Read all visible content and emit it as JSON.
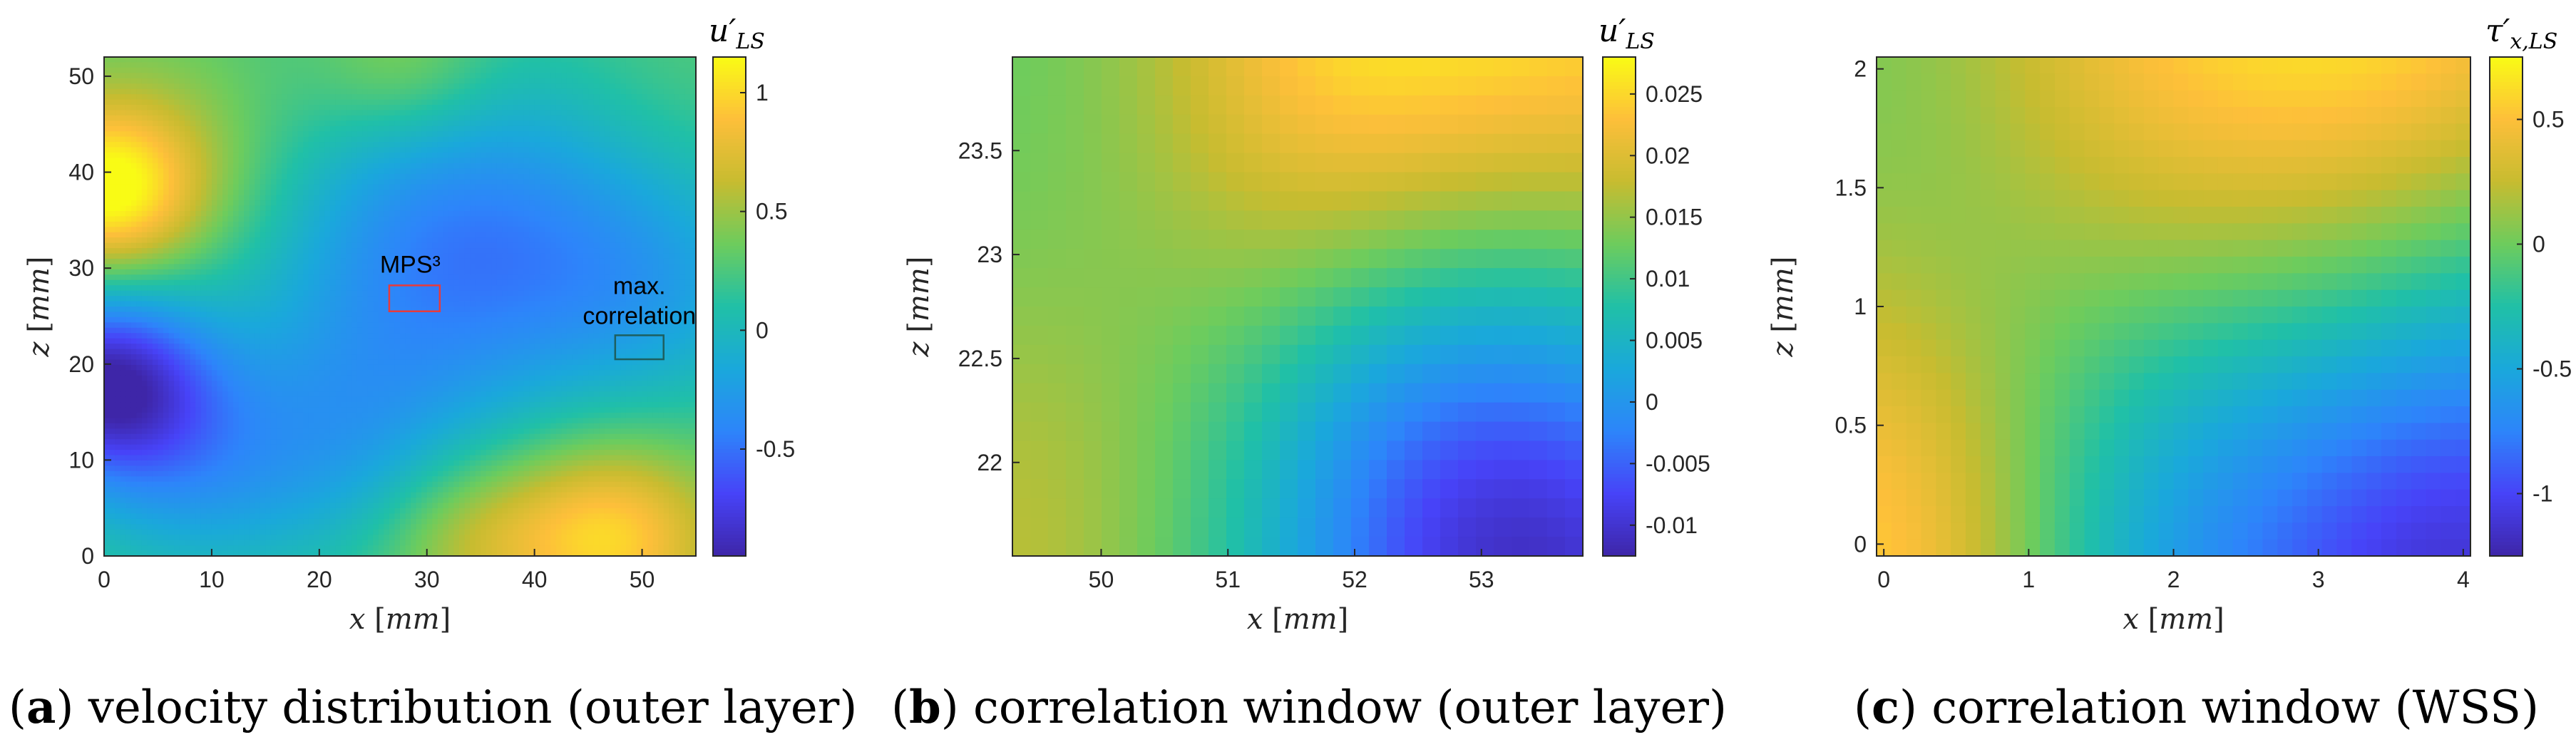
{
  "colormap": [
    "#3e26a8",
    "#4743f8",
    "#2d85fa",
    "#1aa8db",
    "#20c0a7",
    "#6dcc5d",
    "#c7bc30",
    "#fdbf3a",
    "#f9fb15"
  ],
  "chart_data": [
    {
      "type": "heatmap",
      "caption_letter": "a",
      "caption_text": " velocity distribution (outer layer)",
      "xlabel": "x",
      "xlabel_unit": "mm",
      "ylabel": "z",
      "ylabel_unit": "mm",
      "colorbar_label": "u′",
      "colorbar_sub": "LS",
      "xlim": [
        0,
        55
      ],
      "ylim": [
        0,
        52
      ],
      "xticks": [
        "0",
        "10",
        "20",
        "30",
        "40",
        "50"
      ],
      "yticks": [
        "0",
        "10",
        "20",
        "30",
        "40",
        "50"
      ],
      "clim": [
        -0.95,
        1.15
      ],
      "cticks": [
        "-0.5",
        "0",
        "0.5",
        "1"
      ],
      "annotations": [
        {
          "text": "MPS³",
          "box_x": [
            26.5,
            31.2
          ],
          "box_z": [
            25.5,
            28.2
          ],
          "color": "#e83b3b"
        },
        {
          "text": "max.",
          "text2": "correlation",
          "box_x": [
            47.5,
            52.0
          ],
          "box_z": [
            20.5,
            23.0
          ],
          "color": "#1d5f5f"
        }
      ],
      "field": [
        {
          "x": 0,
          "z": 38,
          "v": 1.1,
          "s": 6
        },
        {
          "x": 6,
          "z": 42,
          "v": 0.5,
          "s": 9
        },
        {
          "x": 0,
          "z": 18,
          "v": -0.9,
          "s": 7
        },
        {
          "x": 33,
          "z": 32,
          "v": -0.45,
          "s": 13
        },
        {
          "x": 22,
          "z": 12,
          "v": -0.1,
          "s": 9
        },
        {
          "x": 8,
          "z": 8,
          "v": -0.1,
          "s": 8
        },
        {
          "x": 52,
          "z": 28,
          "v": -0.05,
          "s": 9
        },
        {
          "x": 47,
          "z": 2,
          "v": 1.0,
          "s": 7
        },
        {
          "x": 34,
          "z": 2,
          "v": 0.6,
          "s": 6
        },
        {
          "x": 28,
          "z": 51,
          "v": 0.55,
          "s": 6
        },
        {
          "x": 52,
          "z": 50,
          "v": 0.3,
          "s": 7
        }
      ],
      "base": 0.25
    },
    {
      "type": "heatmap",
      "caption_letter": "b",
      "caption_text": " correlation window (outer layer)",
      "xlabel": "x",
      "xlabel_unit": "mm",
      "ylabel": "z",
      "ylabel_unit": "mm",
      "colorbar_label": "u′",
      "colorbar_sub": "LS",
      "xlim": [
        49.3,
        53.8
      ],
      "ylim": [
        21.55,
        23.95
      ],
      "xticks": [
        "50",
        "51",
        "52",
        "53"
      ],
      "yticks": [
        "22",
        "22.5",
        "23",
        "23.5"
      ],
      "clim": [
        -0.0125,
        0.028
      ],
      "cticks": [
        "-0.01",
        "-0.005",
        "0",
        "0.005",
        "0.01",
        "0.015",
        "0.02",
        "0.025"
      ],
      "field": [
        {
          "x": 53.8,
          "z": 23.95,
          "v": 0.028,
          "s": 1.6
        },
        {
          "x": 51.8,
          "z": 23.95,
          "v": 0.02,
          "s": 1.0
        },
        {
          "x": 53.8,
          "z": 21.55,
          "v": -0.012,
          "s": 1.3
        },
        {
          "x": 52.3,
          "z": 22.0,
          "v": 0.002,
          "s": 1.0
        },
        {
          "x": 49.3,
          "z": 21.6,
          "v": 0.017,
          "s": 0.9
        }
      ],
      "base": 0.012,
      "pixel": [
        32,
        26
      ]
    },
    {
      "type": "heatmap",
      "caption_letter": "c",
      "caption_text": " correlation window (WSS)",
      "xlabel": "x",
      "xlabel_unit": "mm",
      "ylabel": "z",
      "ylabel_unit": "mm",
      "colorbar_label": "τ′",
      "colorbar_sub": "x,LS",
      "xlim": [
        -0.05,
        4.05
      ],
      "ylim": [
        -0.05,
        2.05
      ],
      "xticks": [
        "0",
        "1",
        "2",
        "3",
        "4"
      ],
      "yticks": [
        "0",
        "0.5",
        "1",
        "1.5",
        "2"
      ],
      "clim": [
        -1.25,
        0.75
      ],
      "cticks": [
        "-1",
        "-0.5",
        "0",
        "0.5"
      ],
      "field": [
        {
          "x": 3.6,
          "z": 2.05,
          "v": 0.75,
          "s": 1.2
        },
        {
          "x": 1.8,
          "z": 2.05,
          "v": 0.35,
          "s": 1.0
        },
        {
          "x": 4.05,
          "z": -0.05,
          "v": -1.2,
          "s": 1.2
        },
        {
          "x": 2.0,
          "z": 0.1,
          "v": -0.45,
          "s": 1.0
        },
        {
          "x": -0.05,
          "z": -0.05,
          "v": 0.6,
          "s": 0.9
        },
        {
          "x": 0.4,
          "z": 1.2,
          "v": -0.1,
          "s": 0.7
        }
      ],
      "base": 0.0,
      "pixel": [
        40,
        30
      ]
    }
  ]
}
